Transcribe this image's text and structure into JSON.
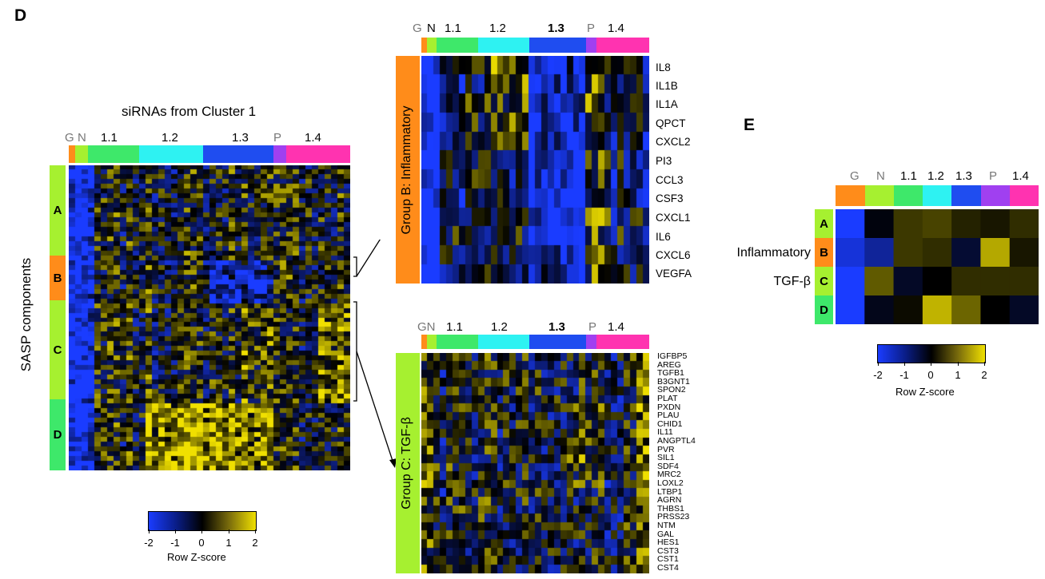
{
  "panel_d": {
    "letter": "D",
    "title": "siRNAs from Cluster 1",
    "y_axis_label": "SASP components",
    "col_groups": [
      "G",
      "N",
      "1.1",
      "1.2",
      "1.3",
      "P",
      "1.4"
    ],
    "row_groups": [
      "A",
      "B",
      "C",
      "D"
    ],
    "colorbar": {
      "label": "Row Z-score",
      "ticks": [
        "-2",
        "-1",
        "0",
        "1",
        "2"
      ]
    }
  },
  "group_b_zoom": {
    "side_label": "Group B: Inflammatory",
    "col_groups": [
      "G",
      "N",
      "1.1",
      "1.2",
      "1.3",
      "P",
      "1.4"
    ],
    "genes": [
      "IL8",
      "IL1B",
      "IL1A",
      "QPCT",
      "CXCL2",
      "PI3",
      "CCL3",
      "CSF3",
      "CXCL1",
      "IL6",
      "CXCL6",
      "VEGFA"
    ]
  },
  "group_c_zoom": {
    "side_label": "Group C: TGF-β",
    "col_groups": [
      "GN",
      "1.1",
      "1.2",
      "1.3",
      "P",
      "1.4"
    ],
    "genes": [
      "IGFBP5",
      "AREG",
      "TGFB1",
      "B3GNT1",
      "SPON2",
      "PLAT",
      "PXDN",
      "PLAU",
      "CHID1",
      "IL11",
      "ANGPTL4",
      "PVR",
      "SIL1",
      "SDF4",
      "MRC2",
      "LOXL2",
      "LTBP1",
      "AGRN",
      "THBS1",
      "PRSS23",
      "NTM",
      "GAL",
      "HES1",
      "CST3",
      "CST1",
      "CST4"
    ]
  },
  "panel_e": {
    "letter": "E",
    "col_groups": [
      "G",
      "N",
      "1.1",
      "1.2",
      "1.3",
      "P",
      "1.4"
    ],
    "row_groups": [
      "A",
      "B",
      "C",
      "D"
    ],
    "row_labels": [
      "",
      "Inflammatory",
      "TGF-β",
      ""
    ],
    "values": [
      [
        -2.0,
        -0.1,
        0.5,
        0.6,
        0.3,
        0.2,
        0.4
      ],
      [
        -1.7,
        -1.2,
        0.5,
        0.4,
        -0.4,
        1.5,
        0.2
      ],
      [
        -2.0,
        0.8,
        -0.3,
        0.0,
        0.4,
        0.4,
        0.4
      ],
      [
        -2.0,
        -0.2,
        0.1,
        1.6,
        0.9,
        0.0,
        -0.3
      ]
    ],
    "colorbar": {
      "label": "Row Z-score",
      "ticks": [
        "-2",
        "-1",
        "0",
        "1",
        "2"
      ]
    }
  },
  "colors": {
    "G": "#ff8c1a",
    "N": "#a6f030",
    "1.1": "#3ee86a",
    "1.2": "#2ef2f2",
    "1.3": "#1f4df0",
    "P": "#a040f0",
    "1.4": "#ff33b0",
    "rowA": "#a6f030",
    "rowB": "#ff8c1a",
    "rowC": "#a6f030",
    "rowD": "#3ee86a",
    "low": "#1a3cff",
    "mid": "#000000",
    "high": "#f0e000"
  }
}
